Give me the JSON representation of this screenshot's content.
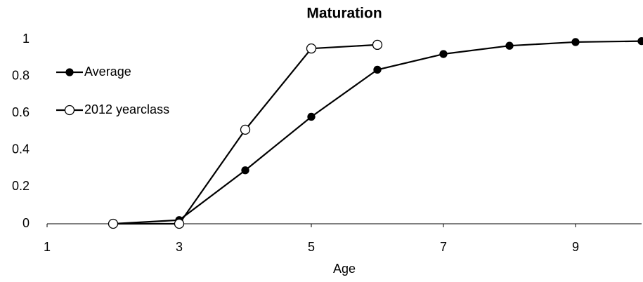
{
  "chart_data": {
    "type": "line",
    "title": "Maturation",
    "x_label": "Age",
    "xlim": [
      1,
      10
    ],
    "xticks": [
      1,
      3,
      5,
      7,
      9
    ],
    "ylim": [
      0,
      1
    ],
    "yticks": [
      0,
      0.2,
      0.4,
      0.6,
      0.8,
      1
    ],
    "grid": false,
    "legend": "upper left",
    "series": [
      {
        "name": "Average",
        "color": "#000000",
        "marker_fill": "#000000",
        "x": [
          2,
          3,
          4,
          5,
          6,
          7,
          8,
          9,
          10
        ],
        "values": [
          0,
          0.02,
          0.29,
          0.58,
          0.835,
          0.92,
          0.965,
          0.985,
          0.99
        ]
      },
      {
        "name": "2012 yearclass",
        "color": "#000000",
        "marker_fill": "#ffffff",
        "x": [
          2,
          3,
          4,
          5,
          6
        ],
        "values": [
          0,
          0,
          0.51,
          0.95,
          0.97
        ]
      }
    ]
  }
}
